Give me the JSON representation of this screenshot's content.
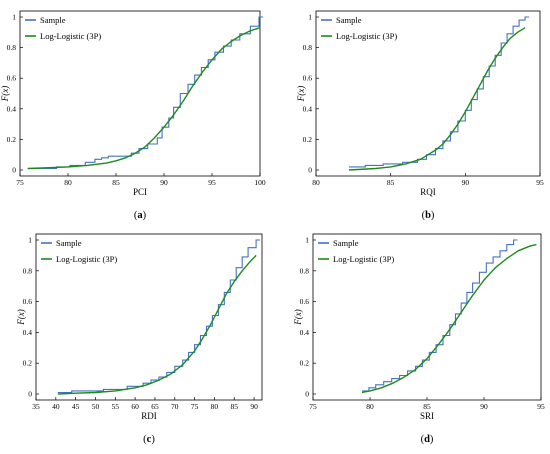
{
  "charts": [
    {
      "panel": "a",
      "caption_open": "(",
      "caption_letter": "a",
      "caption_close": ")",
      "chart_data": {
        "type": "line",
        "xlabel": "PCI",
        "ylabel": "F(x)",
        "xlim": [
          75,
          100
        ],
        "ylim": [
          0,
          1
        ],
        "xticks": [
          75,
          80,
          85,
          90,
          95,
          100
        ],
        "yticks": [
          0,
          0.2,
          0.4,
          0.6,
          0.8,
          1
        ],
        "ytick_labels": [
          "0",
          "0.2",
          "0.4",
          "0.6",
          "0.8",
          "1"
        ],
        "legend_position": "top-left",
        "series": [
          {
            "name": "Sample",
            "style": "step",
            "color": "#4472c4",
            "x": [
              75.8,
              78.8,
              80.2,
              81.8,
              82.8,
              83.5,
              84.2,
              86.6,
              87.4,
              88.3,
              89.3,
              89.8,
              90.5,
              91.0,
              91.7,
              92.5,
              93.2,
              93.9,
              94.6,
              95.3,
              96.2,
              97.0,
              97.9,
              99.0,
              99.9
            ],
            "y": [
              0.01,
              0.02,
              0.03,
              0.05,
              0.07,
              0.08,
              0.09,
              0.11,
              0.14,
              0.17,
              0.21,
              0.28,
              0.34,
              0.41,
              0.5,
              0.56,
              0.62,
              0.67,
              0.72,
              0.77,
              0.81,
              0.85,
              0.89,
              0.94,
              1.0
            ]
          },
          {
            "name": "Log-Logistic (3P)",
            "style": "smooth",
            "color": "#1e8a1e",
            "x": [
              75.8,
              78,
              80,
              82,
              84,
              85,
              86,
              87,
              88,
              89,
              90,
              91,
              92,
              93,
              94,
              95,
              96,
              97,
              98,
              99,
              100
            ],
            "y": [
              0.01,
              0.015,
              0.02,
              0.03,
              0.045,
              0.06,
              0.08,
              0.11,
              0.15,
              0.21,
              0.28,
              0.36,
              0.45,
              0.55,
              0.64,
              0.72,
              0.79,
              0.84,
              0.88,
              0.91,
              0.93
            ]
          }
        ]
      }
    },
    {
      "panel": "b",
      "caption_open": "(",
      "caption_letter": "b",
      "caption_close": ")",
      "chart_data": {
        "type": "line",
        "xlabel": "RQI",
        "ylabel": "F(x)",
        "xlim": [
          80,
          95
        ],
        "ylim": [
          0,
          1
        ],
        "xticks": [
          80,
          85,
          90,
          95
        ],
        "yticks": [
          0,
          0.2,
          0.4,
          0.6,
          0.8,
          1
        ],
        "ytick_labels": [
          "0",
          "0.2",
          "0.4",
          "0.6",
          "0.8",
          "1"
        ],
        "legend_position": "top-left",
        "series": [
          {
            "name": "Sample",
            "style": "step",
            "color": "#4472c4",
            "x": [
              82.2,
              83.3,
              84.5,
              85.8,
              86.8,
              87.4,
              88.0,
              88.5,
              89.0,
              89.5,
              90.0,
              90.4,
              90.8,
              91.2,
              91.6,
              92.0,
              92.4,
              92.8,
              93.2,
              93.6,
              94.0
            ],
            "y": [
              0.02,
              0.03,
              0.04,
              0.05,
              0.07,
              0.1,
              0.14,
              0.19,
              0.25,
              0.32,
              0.39,
              0.46,
              0.53,
              0.61,
              0.68,
              0.75,
              0.83,
              0.89,
              0.94,
              0.98,
              1.0
            ]
          },
          {
            "name": "Log-Logistic (3P)",
            "style": "smooth",
            "color": "#1e8a1e",
            "x": [
              82.2,
              84,
              85,
              86,
              87,
              88,
              88.5,
              89,
              89.5,
              90,
              90.5,
              91,
              91.5,
              92,
              92.5,
              93,
              93.5,
              94
            ],
            "y": [
              0.0,
              0.01,
              0.02,
              0.04,
              0.07,
              0.13,
              0.17,
              0.23,
              0.3,
              0.38,
              0.47,
              0.56,
              0.65,
              0.73,
              0.8,
              0.86,
              0.9,
              0.93
            ]
          }
        ]
      }
    },
    {
      "panel": "c",
      "caption_open": "(",
      "caption_letter": "c",
      "caption_close": ")",
      "chart_data": {
        "type": "line",
        "xlabel": "RDI",
        "ylabel": "F(x)",
        "xlim": [
          35,
          92
        ],
        "ylim": [
          0,
          1
        ],
        "xticks": [
          35,
          40,
          45,
          50,
          55,
          60,
          65,
          70,
          75,
          80,
          85,
          90
        ],
        "yticks": [
          0,
          0.2,
          0.4,
          0.6,
          0.8,
          1
        ],
        "ytick_labels": [
          "0",
          "0.2",
          "0.4",
          "0.6",
          "0.8",
          "1"
        ],
        "legend_position": "top-left",
        "series": [
          {
            "name": "Sample",
            "style": "step",
            "color": "#4472c4",
            "x": [
              40.5,
              44,
              52,
              58,
              62,
              64,
              66,
              68,
              70,
              72,
              73.5,
              75,
              76.5,
              78,
              79.5,
              81,
              82.5,
              84,
              85.5,
              87,
              88.5,
              90.5
            ],
            "y": [
              0.01,
              0.02,
              0.03,
              0.05,
              0.07,
              0.09,
              0.11,
              0.14,
              0.18,
              0.22,
              0.27,
              0.32,
              0.38,
              0.44,
              0.51,
              0.58,
              0.66,
              0.74,
              0.82,
              0.89,
              0.95,
              1.0
            ]
          },
          {
            "name": "Log-Logistic (3P)",
            "style": "smooth",
            "color": "#1e8a1e",
            "x": [
              40.5,
              45,
              50,
              55,
              60,
              63,
              66,
              69,
              72,
              75,
              77,
              79,
              81,
              83,
              85,
              87,
              89,
              90.5
            ],
            "y": [
              0.0,
              0.005,
              0.01,
              0.02,
              0.04,
              0.06,
              0.09,
              0.13,
              0.19,
              0.28,
              0.36,
              0.45,
              0.55,
              0.65,
              0.73,
              0.8,
              0.86,
              0.9
            ]
          }
        ]
      }
    },
    {
      "panel": "d",
      "caption_open": "(",
      "caption_letter": "d",
      "caption_close": ")",
      "chart_data": {
        "type": "line",
        "xlabel": "SRI",
        "ylabel": "F(x)",
        "xlim": [
          75,
          95
        ],
        "ylim": [
          0,
          1
        ],
        "xticks": [
          75,
          80,
          85,
          90,
          95
        ],
        "yticks": [
          0,
          0.2,
          0.4,
          0.6,
          0.8,
          1
        ],
        "ytick_labels": [
          "0",
          "0.2",
          "0.4",
          "0.6",
          "0.8",
          "1"
        ],
        "legend_position": "top-left",
        "series": [
          {
            "name": "Sample",
            "style": "step",
            "color": "#4472c4",
            "x": [
              79.3,
              79.9,
              80.5,
              81.2,
              81.9,
              82.6,
              83.3,
              84.0,
              84.6,
              85.2,
              85.8,
              86.4,
              87.0,
              87.5,
              88.0,
              88.5,
              89.0,
              89.6,
              90.2,
              90.8,
              91.4,
              92.0,
              92.6
            ],
            "y": [
              0.02,
              0.04,
              0.06,
              0.08,
              0.1,
              0.12,
              0.15,
              0.18,
              0.22,
              0.27,
              0.32,
              0.38,
              0.45,
              0.52,
              0.59,
              0.66,
              0.72,
              0.79,
              0.85,
              0.89,
              0.93,
              0.97,
              1.0
            ]
          },
          {
            "name": "Log-Logistic (3P)",
            "style": "smooth",
            "color": "#1e8a1e",
            "x": [
              79.3,
              80,
              81,
              82,
              83,
              84,
              85,
              86,
              87,
              88,
              89,
              90,
              91,
              92,
              93,
              94,
              94.6
            ],
            "y": [
              0.01,
              0.02,
              0.04,
              0.07,
              0.11,
              0.16,
              0.23,
              0.32,
              0.42,
              0.53,
              0.64,
              0.74,
              0.82,
              0.88,
              0.93,
              0.96,
              0.97
            ]
          }
        ]
      }
    }
  ]
}
